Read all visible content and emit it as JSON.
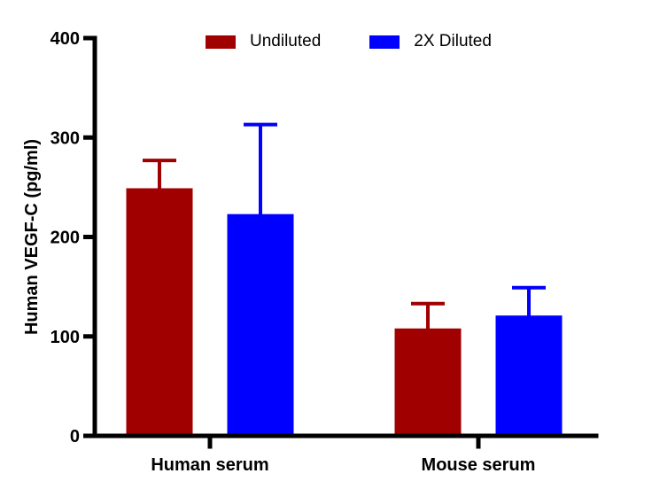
{
  "chart_data": {
    "type": "bar",
    "title": "",
    "ylabel": "Human VEGF-C (pg/ml)",
    "xlabel": "",
    "categories": [
      "Human serum",
      "Mouse serum"
    ],
    "series": [
      {
        "name": "Undiluted",
        "color": "#a00000",
        "values": [
          249,
          108
        ],
        "error_up": [
          28,
          25
        ]
      },
      {
        "name": "2X Diluted",
        "color": "#0000fe",
        "values": [
          223,
          121
        ],
        "error_up": [
          90,
          28
        ]
      }
    ],
    "ylim": [
      0,
      400
    ],
    "yticks": [
      0,
      100,
      200,
      300,
      400
    ],
    "grid": false,
    "legend_position": "top",
    "error_bar_style": "upper-only-with-cap",
    "axis_color": "#000000",
    "background_color": "#ffffff"
  }
}
